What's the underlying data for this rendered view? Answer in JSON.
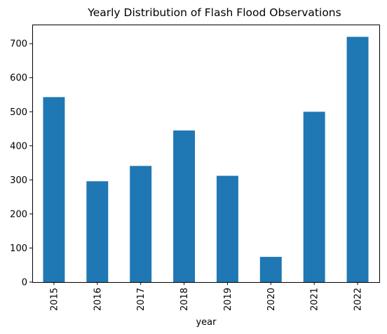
{
  "chart_data": {
    "type": "bar",
    "title": "Yearly Distribution of Flash Flood Observations",
    "xlabel": "year",
    "ylabel": "",
    "categories": [
      "2015",
      "2016",
      "2017",
      "2018",
      "2019",
      "2020",
      "2021",
      "2022"
    ],
    "values": [
      543,
      296,
      341,
      445,
      312,
      74,
      500,
      720
    ],
    "ylim": [
      0,
      756
    ],
    "yticks": [
      0,
      100,
      200,
      300,
      400,
      500,
      600,
      700
    ],
    "bar_color": "#1f77b4",
    "grid": false,
    "legend": "none"
  }
}
